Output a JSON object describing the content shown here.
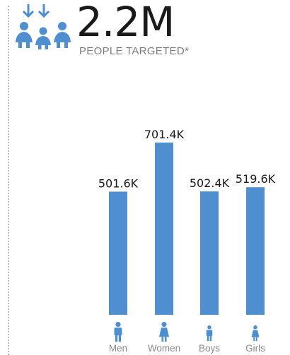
{
  "header": {
    "value": "2.2M",
    "label": "PEOPLE TARGETED*",
    "icon": "people-targeted-icon"
  },
  "colors": {
    "bar": "#4f8fcf",
    "icon": "#4f8fcf",
    "text": "#1a1a1a",
    "muted": "#8a8a8a"
  },
  "chart_data": {
    "type": "bar",
    "categories": [
      "Men",
      "Women",
      "Boys",
      "Girls"
    ],
    "values": [
      501.6,
      701.4,
      502.4,
      519.6
    ],
    "value_labels": [
      "501.6K",
      "701.4K",
      "502.4K",
      "519.6K"
    ],
    "category_icons": [
      "man-icon",
      "woman-icon",
      "boy-icon",
      "girl-icon"
    ],
    "unit": "K",
    "ylim": [
      0,
      760
    ],
    "grid": false,
    "legend": "none"
  }
}
